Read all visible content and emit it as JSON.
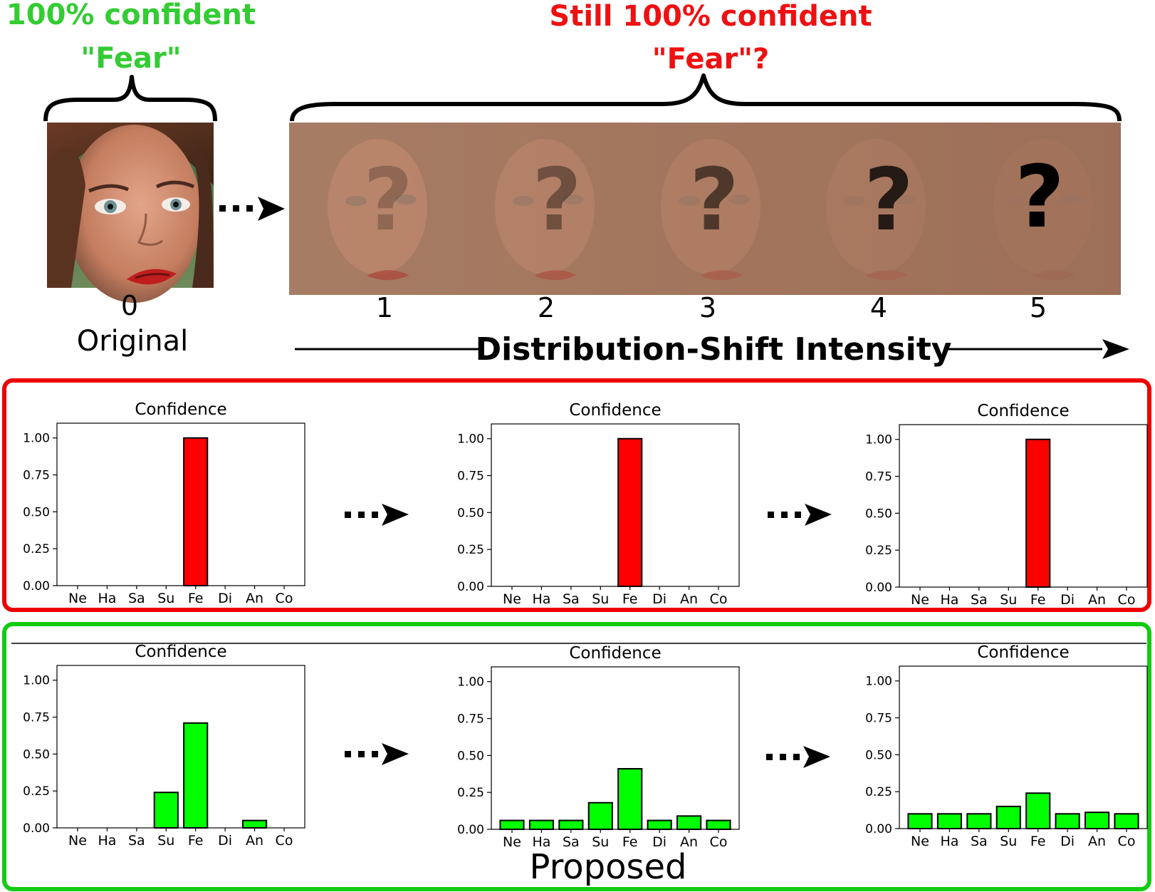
{
  "header": {
    "left_line1": "100% confident",
    "left_line2": "\"Fear\"",
    "right_line1": "Still 100% confident",
    "right_line2": "\"Fear\"?",
    "left_color": "#33cc33",
    "right_color": "#ee1111"
  },
  "original": {
    "index": "0",
    "label": "Original"
  },
  "shift": {
    "indices": [
      "1",
      "2",
      "3",
      "4",
      "5"
    ],
    "question_mark": "?",
    "axis_label": "Distribution-Shift Intensity"
  },
  "panels": {
    "top_border_color": "#ee0000",
    "bottom_border_color": "#11cc11",
    "bottom_caption": "Proposed"
  },
  "chart_data": [
    {
      "type": "bar",
      "title": "Confidence",
      "group": "baseline",
      "categories": [
        "Ne",
        "Ha",
        "Sa",
        "Su",
        "Fe",
        "Di",
        "An",
        "Co"
      ],
      "values": [
        0,
        0,
        0,
        0,
        1.0,
        0,
        0,
        0
      ],
      "ylim": [
        0,
        1.1
      ],
      "yticks": [
        "0.00",
        "0.25",
        "0.50",
        "0.75",
        "1.00"
      ],
      "color": "#ff0000"
    },
    {
      "type": "bar",
      "title": "Confidence",
      "group": "baseline",
      "categories": [
        "Ne",
        "Ha",
        "Sa",
        "Su",
        "Fe",
        "Di",
        "An",
        "Co"
      ],
      "values": [
        0,
        0,
        0,
        0,
        1.0,
        0,
        0,
        0
      ],
      "ylim": [
        0,
        1.1
      ],
      "yticks": [
        "0.00",
        "0.25",
        "0.50",
        "0.75",
        "1.00"
      ],
      "color": "#ff0000"
    },
    {
      "type": "bar",
      "title": "Confidence",
      "group": "baseline",
      "categories": [
        "Ne",
        "Ha",
        "Sa",
        "Su",
        "Fe",
        "Di",
        "An",
        "Co"
      ],
      "values": [
        0,
        0,
        0,
        0,
        1.0,
        0,
        0,
        0
      ],
      "ylim": [
        0,
        1.1
      ],
      "yticks": [
        "0.00",
        "0.25",
        "0.50",
        "0.75",
        "1.00"
      ],
      "color": "#ff0000"
    },
    {
      "type": "bar",
      "title": "Confidence",
      "group": "proposed",
      "categories": [
        "Ne",
        "Ha",
        "Sa",
        "Su",
        "Fe",
        "Di",
        "An",
        "Co"
      ],
      "values": [
        0,
        0,
        0,
        0.24,
        0.71,
        0,
        0.05,
        0
      ],
      "ylim": [
        0,
        1.1
      ],
      "yticks": [
        "0.00",
        "0.25",
        "0.50",
        "0.75",
        "1.00"
      ],
      "color": "#00ff00"
    },
    {
      "type": "bar",
      "title": "Confidence",
      "group": "proposed",
      "categories": [
        "Ne",
        "Ha",
        "Sa",
        "Su",
        "Fe",
        "Di",
        "An",
        "Co"
      ],
      "values": [
        0.06,
        0.06,
        0.06,
        0.18,
        0.41,
        0.06,
        0.09,
        0.06
      ],
      "ylim": [
        0,
        1.1
      ],
      "yticks": [
        "0.00",
        "0.25",
        "0.50",
        "0.75",
        "1.00"
      ],
      "color": "#00ff00"
    },
    {
      "type": "bar",
      "title": "Confidence",
      "group": "proposed",
      "categories": [
        "Ne",
        "Ha",
        "Sa",
        "Su",
        "Fe",
        "Di",
        "An",
        "Co"
      ],
      "values": [
        0.1,
        0.1,
        0.1,
        0.15,
        0.24,
        0.1,
        0.11,
        0.1
      ],
      "ylim": [
        0,
        1.1
      ],
      "yticks": [
        "0.00",
        "0.25",
        "0.50",
        "0.75",
        "1.00"
      ],
      "color": "#00ff00"
    }
  ]
}
